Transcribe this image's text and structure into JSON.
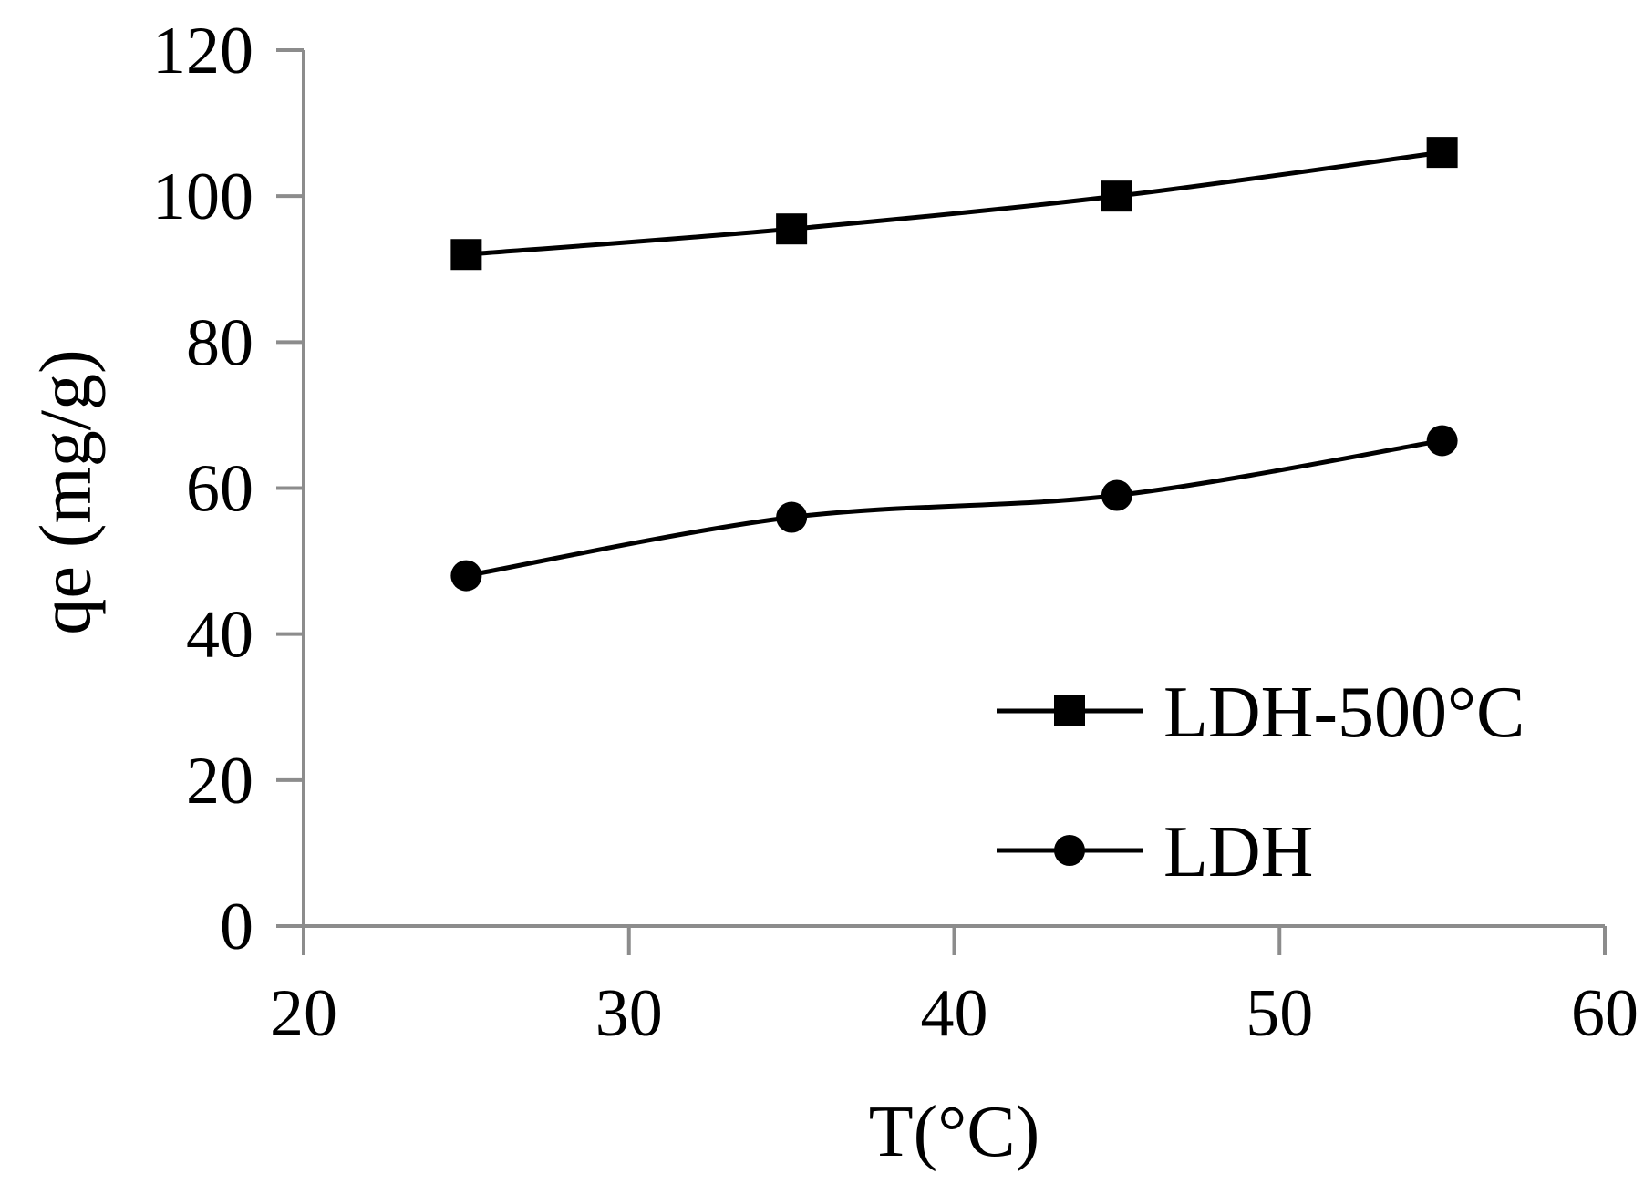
{
  "chart_data": {
    "type": "line",
    "title": "",
    "xlabel": "T(°C)",
    "ylabel": "qe (mg/g)",
    "xlim": [
      20,
      60
    ],
    "ylim": [
      0,
      120
    ],
    "x_ticks": [
      20,
      30,
      40,
      50,
      60
    ],
    "y_ticks": [
      0,
      20,
      40,
      60,
      80,
      100,
      120
    ],
    "x_tick_labels": [
      "20",
      "30",
      "40",
      "50",
      "60"
    ],
    "y_tick_labels": [
      "0",
      "20",
      "40",
      "60",
      "80",
      "100",
      "120"
    ],
    "grid": false,
    "legend_position": "bottom-right",
    "x": [
      25,
      35,
      45,
      55
    ],
    "series": [
      {
        "name": "LDH-500°C",
        "marker": "square",
        "values": [
          92,
          95.5,
          100,
          106
        ]
      },
      {
        "name": "LDH",
        "marker": "circle",
        "values": [
          48,
          56,
          59,
          66.5
        ]
      }
    ],
    "colors": {
      "series": "#000000",
      "axis": "#8c8c8c"
    }
  }
}
